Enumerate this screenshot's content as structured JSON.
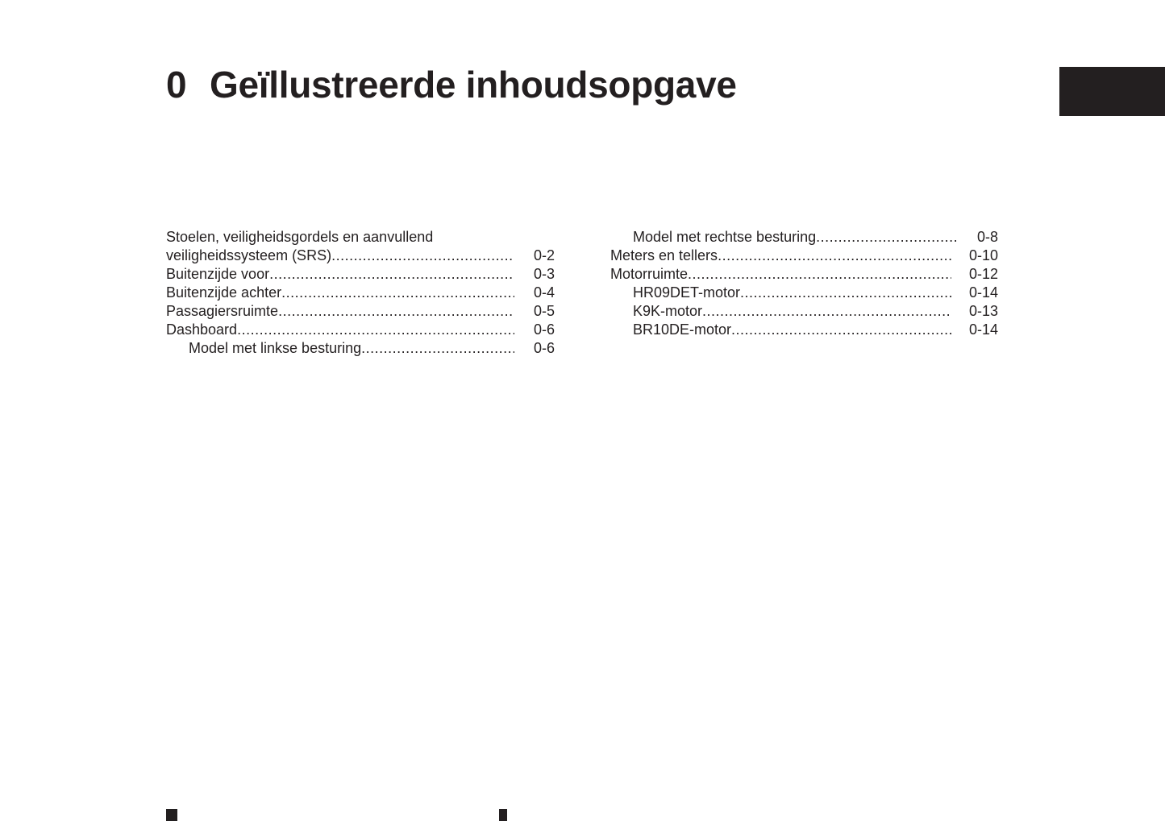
{
  "chapter": {
    "number": "0",
    "title": "Geïllustreerde inhoudsopgave"
  },
  "toc_left": [
    {
      "label": "Stoelen, veiligheidsgordels en aanvullend",
      "page": "",
      "indent": false
    },
    {
      "label": "veiligheidssysteem (SRS)",
      "page": "0-2",
      "indent": false
    },
    {
      "label": "Buitenzijde voor",
      "page": "0-3",
      "indent": false
    },
    {
      "label": "Buitenzijde achter",
      "page": "0-4",
      "indent": false
    },
    {
      "label": "Passagiersruimte",
      "page": "0-5",
      "indent": false
    },
    {
      "label": "Dashboard",
      "page": "0-6",
      "indent": false
    },
    {
      "label": "Model met linkse besturing",
      "page": "0-6",
      "indent": true
    }
  ],
  "toc_right": [
    {
      "label": "Model met rechtse besturing",
      "page": "0-8",
      "indent": true
    },
    {
      "label": "Meters en tellers",
      "page": "0-10",
      "indent": false
    },
    {
      "label": "Motorruimte",
      "page": "0-12",
      "indent": false
    },
    {
      "label": "HR09DET-motor",
      "page": "0-14",
      "indent": true
    },
    {
      "label": "K9K-motor",
      "page": "0-13",
      "indent": true
    },
    {
      "label": "BR10DE-motor",
      "page": "0-14",
      "indent": true
    }
  ]
}
